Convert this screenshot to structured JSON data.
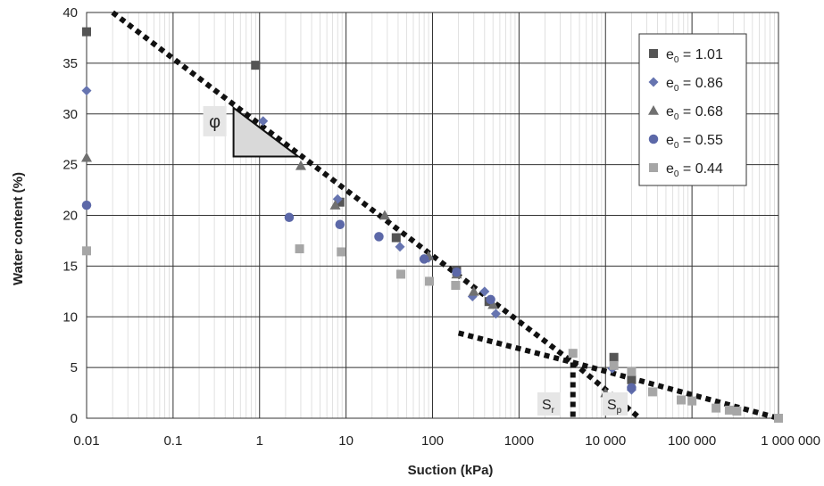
{
  "chart_data": {
    "type": "scatter",
    "xscale": "log",
    "xlim": [
      0.01,
      1000000
    ],
    "ylim": [
      0,
      40
    ],
    "xlabel": "Suction (kPa)",
    "ylabel": "Water content (%)",
    "x_tick_labels": [
      "0.01",
      "0.1",
      "1",
      "10",
      "100",
      "1000",
      "10 000",
      "100 000",
      "1 000 000"
    ],
    "y_tick_labels": [
      "0",
      "5",
      "10",
      "15",
      "20",
      "25",
      "30",
      "35",
      "40"
    ],
    "y_ticks": [
      0,
      5,
      10,
      15,
      20,
      25,
      30,
      35,
      40
    ],
    "x_ticks": [
      0.01,
      0.1,
      1,
      10,
      100,
      1000,
      10000,
      100000,
      1000000
    ],
    "grid": true,
    "legend_position": "top-right",
    "series": [
      {
        "name_prefix": "e",
        "name_sub": "0",
        "name_suffix": "= 1.01",
        "marker": "square",
        "color": "#555555",
        "points": [
          [
            0.01,
            38.1
          ],
          [
            0.9,
            34.8
          ],
          [
            8.5,
            21.3
          ],
          [
            38,
            17.8
          ],
          [
            190,
            14.5
          ],
          [
            450,
            11.5
          ],
          [
            12500,
            6.0
          ],
          [
            20000,
            3.8
          ]
        ]
      },
      {
        "name_prefix": "e",
        "name_sub": "0",
        "name_suffix": "= 0.86",
        "marker": "diamond",
        "color": "#6674b0",
        "points": [
          [
            0.01,
            32.3
          ],
          [
            1.1,
            29.3
          ],
          [
            8.0,
            21.6
          ],
          [
            42,
            16.9
          ],
          [
            90,
            15.8
          ],
          [
            290,
            12.0
          ],
          [
            400,
            12.5
          ],
          [
            540,
            10.3
          ],
          [
            12000,
            4.9
          ],
          [
            20000,
            2.8
          ]
        ]
      },
      {
        "name_prefix": "e",
        "name_sub": "0",
        "name_suffix": "= 0.68",
        "marker": "triangle",
        "color": "#707070",
        "points": [
          [
            0.01,
            25.7
          ],
          [
            3.0,
            24.9
          ],
          [
            7.5,
            21.0
          ],
          [
            28,
            20.0
          ],
          [
            90,
            16.0
          ],
          [
            190,
            14.2
          ],
          [
            300,
            12.5
          ],
          [
            500,
            11.2
          ],
          [
            10000,
            2.5
          ]
        ]
      },
      {
        "name_prefix": "e",
        "name_sub": "0",
        "name_suffix": "= 0.55",
        "marker": "circle",
        "color": "#5c68a8",
        "points": [
          [
            0.01,
            21.0
          ],
          [
            2.2,
            19.8
          ],
          [
            8.5,
            19.1
          ],
          [
            24,
            17.9
          ],
          [
            80,
            15.7
          ],
          [
            190,
            14.4
          ],
          [
            470,
            11.7
          ],
          [
            20000,
            3.0
          ]
        ]
      },
      {
        "name_prefix": "e",
        "name_sub": "0",
        "name_suffix": "= 0.44",
        "marker": "square",
        "color": "#a6a6a6",
        "points": [
          [
            0.01,
            16.5
          ],
          [
            2.9,
            16.7
          ],
          [
            8.8,
            16.4
          ],
          [
            43,
            14.2
          ],
          [
            92,
            13.5
          ],
          [
            185,
            13.1
          ],
          [
            4200,
            6.4
          ],
          [
            12500,
            5.2
          ],
          [
            20000,
            4.6
          ],
          [
            35000,
            2.6
          ],
          [
            75000,
            1.8
          ],
          [
            100000,
            1.7
          ],
          [
            190000,
            1.0
          ],
          [
            270000,
            0.8
          ],
          [
            330000,
            0.7
          ],
          [
            1000000,
            0
          ]
        ]
      }
    ],
    "fitted_lines": [
      {
        "from": [
          0.02,
          40.0
        ],
        "to": [
          4200,
          5.5
        ]
      },
      {
        "from": [
          4200,
          5.5
        ],
        "to": [
          1000000,
          0
        ]
      },
      {
        "from": [
          200,
          8.4
        ],
        "to": [
          4200,
          5.5
        ]
      },
      {
        "from": [
          4200,
          5.5
        ],
        "to": [
          25000,
          0
        ]
      }
    ],
    "drop_line": {
      "x": 4200,
      "from_y": 5.5,
      "to_y": 0
    },
    "slope_triangle": {
      "x_left": 0.5,
      "x_right": 2.8,
      "y_top": 30.6,
      "y_bottom": 25.8
    },
    "annotations": {
      "phi": "φ",
      "sr_main": "S",
      "sr_sub": "r",
      "sp_main": "S",
      "sp_sub": "p"
    }
  }
}
